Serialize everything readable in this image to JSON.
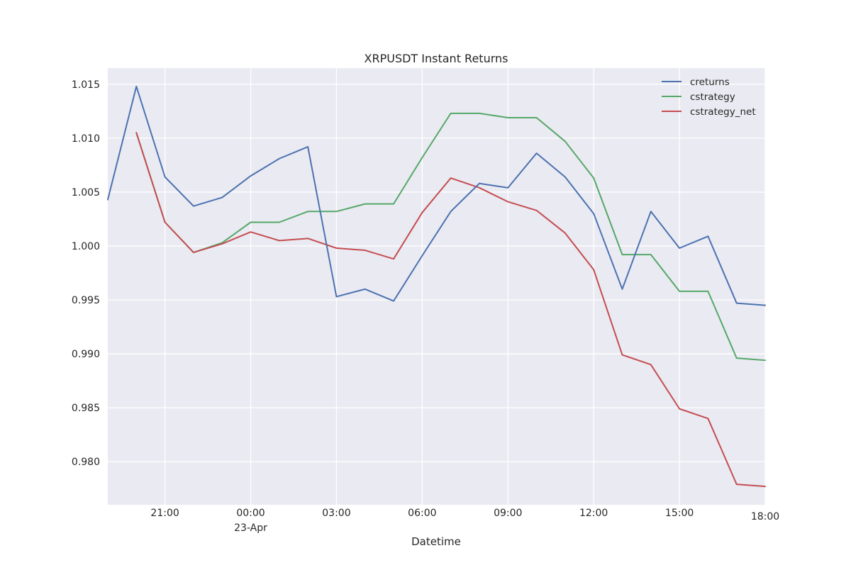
{
  "chart_data": {
    "type": "line",
    "title": "XRPUSDT Instant Returns",
    "xlabel": "Datetime",
    "ylabel": "",
    "x": [
      "04-22 19:00",
      "04-22 20:00",
      "04-22 21:00",
      "04-22 22:00",
      "04-22 23:00",
      "04-23 00:00",
      "04-23 01:00",
      "04-23 02:00",
      "04-23 03:00",
      "04-23 04:00",
      "04-23 05:00",
      "04-23 06:00",
      "04-23 07:00",
      "04-23 08:00",
      "04-23 09:00",
      "04-23 10:00",
      "04-23 11:00",
      "04-23 12:00",
      "04-23 13:00",
      "04-23 14:00",
      "04-23 15:00",
      "04-23 16:00",
      "04-23 17:00",
      "04-23 18:00"
    ],
    "x_ticks": [
      {
        "label": "21:00",
        "sub": "",
        "at": "04-22 21:00"
      },
      {
        "label": "00:00",
        "sub": "23-Apr",
        "at": "04-23 00:00"
      },
      {
        "label": "03:00",
        "sub": "",
        "at": "04-23 03:00"
      },
      {
        "label": "06:00",
        "sub": "",
        "at": "04-23 06:00"
      },
      {
        "label": "09:00",
        "sub": "",
        "at": "04-23 09:00"
      },
      {
        "label": "12:00",
        "sub": "",
        "at": "04-23 12:00"
      },
      {
        "label": "15:00",
        "sub": "",
        "at": "04-23 15:00"
      },
      {
        "label": "18:00",
        "sub": "",
        "at": "04-23 18:00"
      }
    ],
    "ylim": [
      0.976,
      1.0165
    ],
    "y_ticks": [
      "0.980",
      "0.985",
      "0.990",
      "0.995",
      "1.000",
      "1.005",
      "1.010",
      "1.015"
    ],
    "grid": true,
    "legend_position": "top-right",
    "series": [
      {
        "name": "creturns",
        "color": "#4c72b0",
        "values": [
          1.0043,
          1.0148,
          1.0064,
          1.0037,
          1.0045,
          1.0065,
          1.0081,
          1.0092,
          0.9953,
          0.996,
          0.9949,
          0.9991,
          1.0032,
          1.0058,
          1.0054,
          1.0086,
          1.0064,
          1.003,
          0.996,
          1.0032,
          0.9998,
          1.0009,
          0.9947,
          0.9945
        ]
      },
      {
        "name": "cstrategy",
        "color": "#55a868",
        "values": [
          null,
          1.0105,
          1.0022,
          0.9994,
          1.0003,
          1.0022,
          1.0022,
          1.0032,
          1.0032,
          1.0039,
          1.0039,
          1.0082,
          1.0123,
          1.0123,
          1.0119,
          1.0119,
          1.0097,
          1.0063,
          0.9992,
          0.9992,
          0.9958,
          0.9958,
          0.9896,
          0.9894
        ]
      },
      {
        "name": "cstrategy_net",
        "color": "#c44e52",
        "values": [
          null,
          1.0105,
          1.0022,
          0.9994,
          1.0002,
          1.0013,
          1.0005,
          1.0007,
          0.9998,
          0.9996,
          0.9988,
          1.0031,
          1.0063,
          1.0054,
          1.0041,
          1.0033,
          1.0012,
          0.9978,
          0.9899,
          0.989,
          0.9849,
          0.984,
          0.9779,
          0.9777
        ]
      }
    ]
  }
}
